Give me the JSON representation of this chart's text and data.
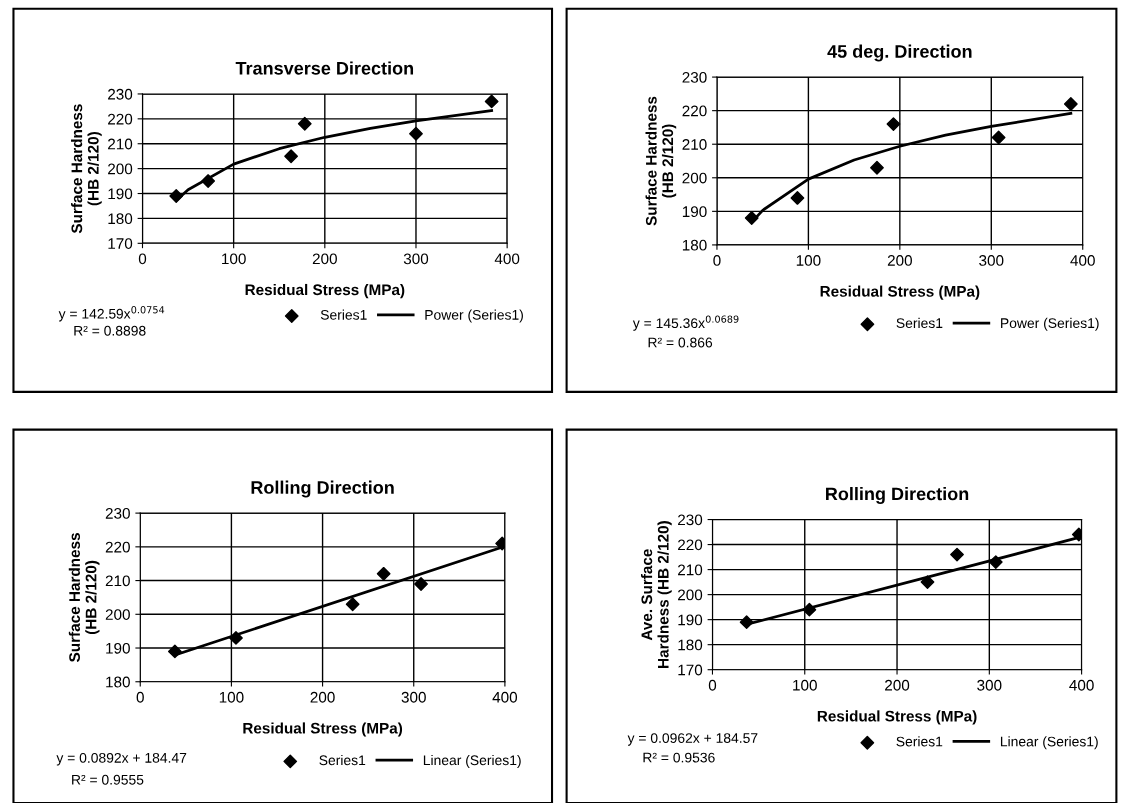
{
  "chart_data": [
    {
      "type": "scatter",
      "title": "Transverse Direction",
      "xlabel": "Residual Stress (MPa)",
      "ylabel": "Surface Hardness\n(HB 2/120)",
      "xlim": [
        0,
        400
      ],
      "xticks": [
        0,
        100,
        200,
        300,
        400
      ],
      "ylim": [
        170,
        230
      ],
      "yticks": [
        170,
        180,
        190,
        200,
        210,
        220,
        230
      ],
      "grid": true,
      "legend": "bottom right",
      "annotations": [
        "y = 142.59x$^{0.0754}$",
        "R² = 0.8898"
      ],
      "series": [
        {
          "name": "Series1",
          "marker": "diamond",
          "color": "#000000",
          "x": [
            37,
            72,
            163,
            178,
            300,
            383
          ],
          "values": [
            189,
            195,
            205,
            218,
            214,
            227
          ]
        },
        {
          "name": "Power (Series1)",
          "type": "line",
          "marker": "none",
          "line_style": "solid",
          "color": "#000000",
          "x": [
            37,
            50,
            100,
            150,
            200,
            250,
            300,
            383
          ],
          "values": [
            187.2,
            191.5,
            201.8,
            208.0,
            212.6,
            216.2,
            219.2,
            223.3
          ]
        }
      ]
    },
    {
      "type": "scatter",
      "title": "45 deg. Direction",
      "xlabel": "Residual Stress (MPa)",
      "ylabel": "Surface Hardness\n(HB 2/120)",
      "xlim": [
        0,
        400
      ],
      "xticks": [
        0,
        100,
        200,
        300,
        400
      ],
      "ylim": [
        180,
        230
      ],
      "yticks": [
        180,
        190,
        200,
        210,
        220,
        230
      ],
      "grid": true,
      "legend": "bottom right",
      "annotations": [
        "y = 145.36x$^{0.0689}$",
        "R² = 0.866"
      ],
      "series": [
        {
          "name": "Series1",
          "marker": "diamond",
          "color": "#000000",
          "x": [
            38,
            88,
            175,
            193,
            308,
            387
          ],
          "values": [
            188,
            194,
            203,
            216,
            212,
            222
          ]
        },
        {
          "name": "Power (Series1)",
          "type": "line",
          "marker": "none",
          "line_style": "solid",
          "color": "#000000",
          "x": [
            38,
            50,
            100,
            150,
            200,
            250,
            300,
            387
          ],
          "values": [
            186.8,
            190.3,
            199.6,
            205.3,
            209.4,
            212.7,
            215.3,
            219.2
          ]
        }
      ]
    },
    {
      "type": "scatter",
      "title": "Rolling Direction",
      "xlabel": "Residual Stress (MPa)",
      "ylabel": "Surface Hardness\n(HB 2/120)",
      "xlim": [
        0,
        400
      ],
      "xticks": [
        0,
        100,
        200,
        300,
        400
      ],
      "ylim": [
        180,
        230
      ],
      "yticks": [
        180,
        190,
        200,
        210,
        220,
        230
      ],
      "grid": true,
      "legend": "bottom right",
      "annotations": [
        "y = 0.0892x + 184.47",
        "R² = 0.9555"
      ],
      "series": [
        {
          "name": "Series1",
          "marker": "diamond",
          "color": "#000000",
          "x": [
            38,
            105,
            233,
            267,
            308,
            397
          ],
          "values": [
            189,
            193,
            203,
            212,
            209,
            221
          ]
        },
        {
          "name": "Linear (Series1)",
          "type": "line",
          "marker": "none",
          "line_style": "solid",
          "color": "#000000",
          "x": [
            38,
            397
          ],
          "values": [
            187.9,
            219.9
          ]
        }
      ]
    },
    {
      "type": "scatter",
      "title": "Rolling Direction",
      "xlabel": "Residual Stress (MPa)",
      "ylabel": "Ave. Surface\nHardness (HB 2/120)",
      "xlim": [
        0,
        400
      ],
      "xticks": [
        0,
        100,
        200,
        300,
        400
      ],
      "ylim": [
        170,
        230
      ],
      "yticks": [
        170,
        180,
        190,
        200,
        210,
        220,
        230
      ],
      "grid": true,
      "legend": "bottom right",
      "annotations": [
        "y = 0.0962x + 184.57",
        "R² = 0.9536"
      ],
      "series": [
        {
          "name": "Series1",
          "marker": "diamond",
          "color": "#000000",
          "x": [
            37,
            105,
            233,
            265,
            307,
            397
          ],
          "values": [
            189,
            194,
            205,
            216,
            213,
            224
          ]
        },
        {
          "name": "Linear (Series1)",
          "type": "line",
          "marker": "none",
          "line_style": "solid",
          "color": "#000000",
          "x": [
            37,
            397
          ],
          "values": [
            188.1,
            222.8
          ]
        }
      ]
    }
  ]
}
